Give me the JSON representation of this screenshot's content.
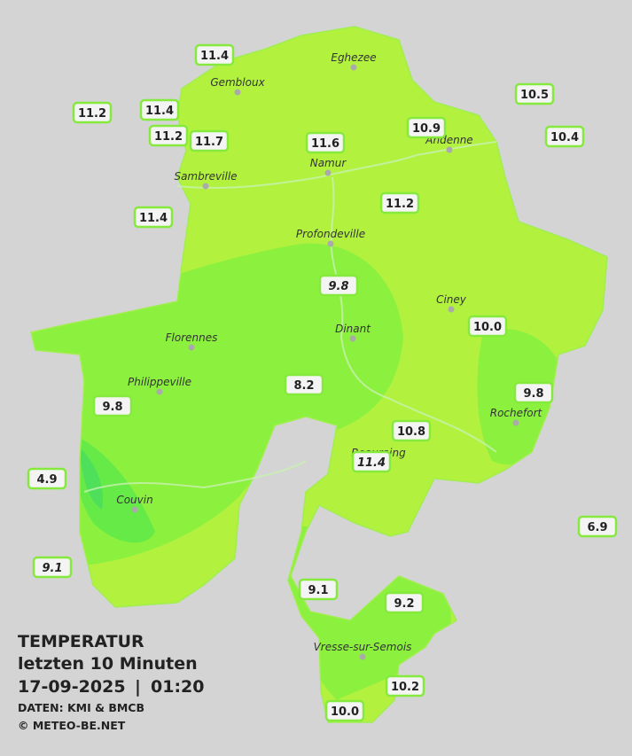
{
  "title": "TEMPERATUR",
  "subtitle": "letzten 10 Minuten",
  "date": "17-09-2025",
  "separator": "|",
  "time": "01:20",
  "source": "DATEN: KMI & BMCB",
  "copyright": "© METEO-BE.NET",
  "cities": [
    "Eghezee",
    "Gembloux",
    "Andenne",
    "Namur",
    "Sambreville",
    "Profondeville",
    "Ciney",
    "Dinant",
    "Florennes",
    "Philippeville",
    "Rochefort",
    "Beauraing",
    "Couvin",
    "Vresse-sur-Semois"
  ],
  "stations": [
    {
      "value": "11.4"
    },
    {
      "value": "11.2"
    },
    {
      "value": "11.4"
    },
    {
      "value": "11.2"
    },
    {
      "value": "11.7"
    },
    {
      "value": "11.6"
    },
    {
      "value": "10.9"
    },
    {
      "value": "10.5"
    },
    {
      "value": "10.4"
    },
    {
      "value": "11.2"
    },
    {
      "value": "11.4"
    },
    {
      "value": "9.8",
      "italic": true
    },
    {
      "value": "10.0"
    },
    {
      "value": "8.2"
    },
    {
      "value": "9.8"
    },
    {
      "value": "9.8"
    },
    {
      "value": "10.8"
    },
    {
      "value": "11.4",
      "italic": true
    },
    {
      "value": "4.9"
    },
    {
      "value": "6.9"
    },
    {
      "value": "9.1",
      "italic": true
    },
    {
      "value": "9.1"
    },
    {
      "value": "9.2"
    },
    {
      "value": "10.2"
    },
    {
      "value": "10.0"
    }
  ]
}
